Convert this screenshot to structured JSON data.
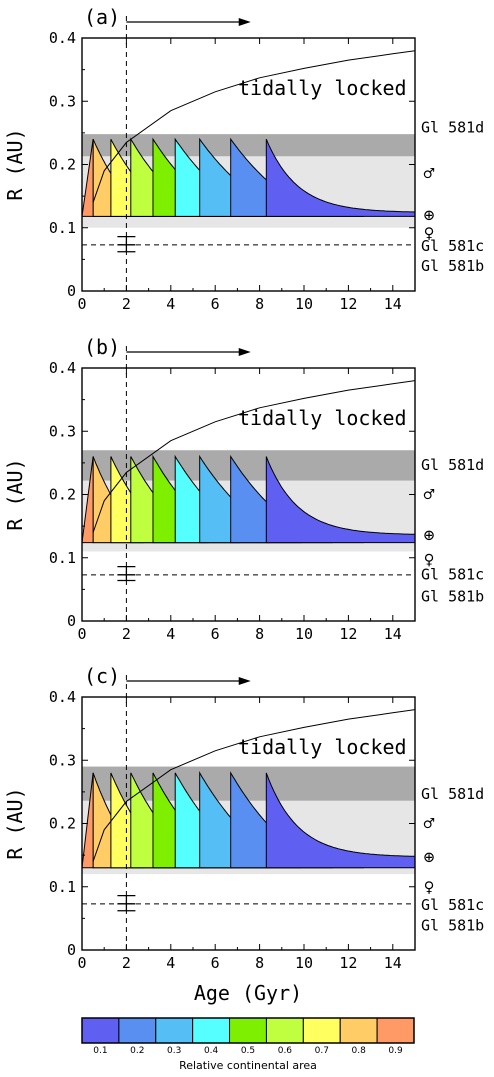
{
  "figure": {
    "shared_xlabel": "Age (Gyr)",
    "shared_ylabel": "R (AU)",
    "colorbar": {
      "label": "Relative continental area",
      "ticks": [
        "0.1",
        "0.2",
        "0.3",
        "0.4",
        "0.5",
        "0.6",
        "0.7",
        "0.8",
        "0.9"
      ],
      "colors": [
        "#5f5ff2",
        "#5a8ff2",
        "#55bff5",
        "#55ffff",
        "#7fef00",
        "#bfff3f",
        "#ffff60",
        "#ffcc66",
        "#ff9966"
      ]
    },
    "colors": {
      "axes": "#000000",
      "dark_band": "#aaaaaa",
      "light_band": "#e6e6e6"
    }
  },
  "chart_data": [
    {
      "type": "area",
      "panel_label": "(a)",
      "xlabel": "",
      "ylabel": "R (AU)",
      "xlim": [
        0,
        15
      ],
      "ylim": [
        0,
        0.4
      ],
      "xticks": [
        0,
        2,
        4,
        6,
        8,
        10,
        12,
        14
      ],
      "yticks": [
        0,
        0.1,
        0.2,
        0.3,
        0.4
      ],
      "ytick_labels": [
        "0",
        "0.1",
        "0.2",
        "0.3",
        "0.4"
      ],
      "annotation": "tidally locked",
      "tidal_lock_curve": {
        "x": [
          0.5,
          1,
          2,
          4,
          6,
          8,
          10,
          12,
          14,
          15
        ],
        "y": [
          0.14,
          0.19,
          0.235,
          0.285,
          0.315,
          0.337,
          0.352,
          0.365,
          0.375,
          0.38
        ]
      },
      "vertical_line_x": 2,
      "arrow_x_range": [
        2,
        7.6
      ],
      "gray_band_dark": [
        0.213,
        0.248
      ],
      "gray_band_light": [
        0.1,
        0.213
      ],
      "hz_outer_start": 0.24,
      "hz_outer_end": 0.124,
      "hz_inner": 0.118,
      "contour_times": [
        0.5,
        1.3,
        2.2,
        3.2,
        4.2,
        5.3,
        6.7,
        8.3
      ],
      "right_labels": [
        {
          "text": "Gl 581d",
          "y": 0.26
        },
        {
          "text": "♂",
          "y": 0.186
        },
        {
          "text": "⊕",
          "y": 0.12
        },
        {
          "text": "♀",
          "y": 0.092
        },
        {
          "text": "Gl 581c",
          "y": 0.073
        },
        {
          "text": "Gl 581b",
          "y": 0.041
        }
      ],
      "planet_c_a": 0.073,
      "planet_c_errorbar": [
        0.062,
        0.086
      ]
    },
    {
      "type": "area",
      "panel_label": "(b)",
      "xlabel": "",
      "ylabel": "R (AU)",
      "xlim": [
        0,
        15
      ],
      "ylim": [
        0,
        0.4
      ],
      "xticks": [
        0,
        2,
        4,
        6,
        8,
        10,
        12,
        14
      ],
      "yticks": [
        0,
        0.1,
        0.2,
        0.3,
        0.4
      ],
      "ytick_labels": [
        "0",
        "0.1",
        "0.2",
        "0.3",
        "0.4"
      ],
      "annotation": "tidally locked",
      "tidal_lock_curve": {
        "x": [
          0.5,
          1,
          2,
          4,
          6,
          8,
          10,
          12,
          14,
          15
        ],
        "y": [
          0.14,
          0.19,
          0.235,
          0.285,
          0.315,
          0.337,
          0.352,
          0.365,
          0.375,
          0.38
        ]
      },
      "vertical_line_x": 2,
      "arrow_x_range": [
        2,
        7.6
      ],
      "gray_band_dark": [
        0.222,
        0.27
      ],
      "gray_band_light": [
        0.11,
        0.222
      ],
      "hz_outer_start": 0.26,
      "hz_outer_end": 0.136,
      "hz_inner": 0.124,
      "contour_times": [
        0.5,
        1.3,
        2.2,
        3.2,
        4.2,
        5.3,
        6.7,
        8.3
      ],
      "right_labels": [
        {
          "text": "Gl 581d",
          "y": 0.248
        },
        {
          "text": "♂",
          "y": 0.2
        },
        {
          "text": "⊕",
          "y": 0.136
        },
        {
          "text": "♀",
          "y": 0.097
        },
        {
          "text": "Gl 581c",
          "y": 0.075
        },
        {
          "text": "Gl 581b",
          "y": 0.04
        }
      ],
      "planet_c_a": 0.073,
      "planet_c_errorbar": [
        0.064,
        0.086
      ]
    },
    {
      "type": "area",
      "panel_label": "(c)",
      "xlabel": "Age (Gyr)",
      "ylabel": "R (AU)",
      "xlim": [
        0,
        15
      ],
      "ylim": [
        0,
        0.4
      ],
      "xticks": [
        0,
        2,
        4,
        6,
        8,
        10,
        12,
        14
      ],
      "yticks": [
        0,
        0.1,
        0.2,
        0.3,
        0.4
      ],
      "ytick_labels": [
        "0",
        "0.1",
        "0.2",
        "0.3",
        "0.4"
      ],
      "annotation": "tidally locked",
      "tidal_lock_curve": {
        "x": [
          0.5,
          1,
          2,
          4,
          6,
          8,
          10,
          12,
          14,
          15
        ],
        "y": [
          0.14,
          0.19,
          0.235,
          0.285,
          0.315,
          0.337,
          0.352,
          0.365,
          0.375,
          0.38
        ]
      },
      "vertical_line_x": 2,
      "arrow_x_range": [
        2,
        7.6
      ],
      "gray_band_dark": [
        0.236,
        0.29
      ],
      "gray_band_light": [
        0.12,
        0.236
      ],
      "hz_outer_start": 0.28,
      "hz_outer_end": 0.147,
      "hz_inner": 0.13,
      "contour_times": [
        0.5,
        1.3,
        2.2,
        3.2,
        4.2,
        5.3,
        6.7,
        8.3
      ],
      "right_labels": [
        {
          "text": "Gl 581d",
          "y": 0.248
        },
        {
          "text": "♂",
          "y": 0.2
        },
        {
          "text": "⊕",
          "y": 0.147
        },
        {
          "text": "♀",
          "y": 0.1
        },
        {
          "text": "Gl 581c",
          "y": 0.073
        },
        {
          "text": "Gl 581b",
          "y": 0.04
        }
      ],
      "planet_c_a": 0.073,
      "planet_c_errorbar": [
        0.062,
        0.086
      ]
    }
  ]
}
